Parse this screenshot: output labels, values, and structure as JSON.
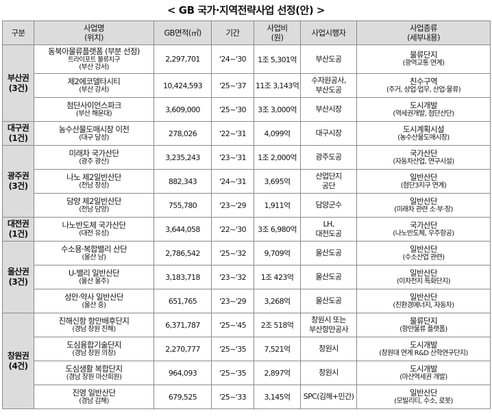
{
  "title": "< GB 국가·지역전략사업 선정(안) >",
  "header": {
    "region": "구분",
    "name": "사업명",
    "name_sub": "(위치)",
    "area": "GB면적(㎡)",
    "period": "기간",
    "cost": "사업비",
    "cost_sub": "(원)",
    "operator": "사업시행자",
    "type": "사업종류",
    "type_sub": "(세부내용)"
  },
  "regions": [
    {
      "name": "부산권",
      "count": "(3건)"
    },
    {
      "name": "대구권",
      "count": "(1건)"
    },
    {
      "name": "광주권",
      "count": "(3건)"
    },
    {
      "name": "대전권",
      "count": "(1건)"
    },
    {
      "name": "울산권",
      "count": "(3건)"
    },
    {
      "name": "창원권",
      "count": "(4건)"
    }
  ],
  "rows": [
    {
      "name": "동북아물류플랫폼 (부분 선정)",
      "sub": "트라이포트 물류지구",
      "loc": "(부산 강서)",
      "area": "2,297,701",
      "period": "'24~'30",
      "cost": "1조 5,301억",
      "operator": "부산도공",
      "operator2": "",
      "type": "물류단지",
      "detail": "(광역교통 연계)"
    },
    {
      "name": "제2에코델타시티",
      "loc": "(부산 강서)",
      "area": "10,424,593",
      "period": "'25~'37",
      "cost": "11조 3,143억",
      "operator": "수자원공사,",
      "operator2": "부산도공",
      "type": "친수구역",
      "detail": "(주거, 상업·업무, 산업·물류)"
    },
    {
      "name": "첨단사이언스파크",
      "loc": "(부산 해운대)",
      "area": "3,609,000",
      "period": "'25~'30",
      "cost": "3조 3,000억",
      "operator": "부산시장",
      "operator2": "",
      "type": "도시개발",
      "detail": "(역세권개발, 첨단산단)"
    },
    {
      "name": "농수산물도매시장 이전",
      "loc": "(대구 달성)",
      "area": "278,026",
      "period": "'22~'31",
      "cost": "4,099억",
      "operator": "대구시장",
      "operator2": "",
      "type": "도시계획시설",
      "detail": "(농수산물도매시장)"
    },
    {
      "name": "미래차 국가산단",
      "loc": "(광주 광산)",
      "area": "3,235,243",
      "period": "'23~'31",
      "cost": "1조 2,000억",
      "operator": "광주도공",
      "operator2": "",
      "type": "국가산단",
      "detail": "(자동차산업, 연구시설)"
    },
    {
      "name": "나노 제2일반산단",
      "loc": "(전남 장성)",
      "area": "882,343",
      "period": "'24~'31",
      "cost": "3,695억",
      "operator": "산업단지",
      "operator2": "공단",
      "type": "일반산단",
      "detail": "(첨단3지구 연계)"
    },
    {
      "name": "담양 제2일반산단",
      "loc": "(전남 담양)",
      "area": "755,780",
      "period": "'23~'29",
      "cost": "1,911억",
      "operator": "담양군수",
      "operator2": "",
      "type": "일반산단",
      "detail": "(미래차 관련 소·부·장)"
    },
    {
      "name": "나노반도체 국가산단",
      "loc": "(대전 유성)",
      "area": "3,644,058",
      "period": "'22~'30",
      "cost": "3조 6,980억",
      "operator": "LH,",
      "operator2": "대전도공",
      "type": "국가산단",
      "detail": "(나노반도체, 우주항공)"
    },
    {
      "name": "수소용·복합밸리 산단",
      "loc": "(울산 남)",
      "area": "2,786,542",
      "period": "'25~'32",
      "cost": "9,709억",
      "operator": "울산도공",
      "operator2": "",
      "type": "일반산단",
      "detail": "(수소산업 관련)"
    },
    {
      "name": "U-밸리 일반산단",
      "loc": "(울산 울주)",
      "area": "3,183,718",
      "period": "'23~'32",
      "cost": "1조 423억",
      "operator": "울산도공",
      "operator2": "",
      "type": "일반산단",
      "detail": "(이차전지 특화단지)"
    },
    {
      "name": "성안·약사 일반산단",
      "loc": "(울산 중)",
      "area": "651,765",
      "period": "'23~'29",
      "cost": "3,268억",
      "operator": "울산도공",
      "operator2": "",
      "type": "일반산단",
      "detail": "(친환경에너지, 자동차)"
    },
    {
      "name": "진해신항 항만배후단지",
      "loc": "(경남 창원 진해)",
      "area": "6,371,787",
      "period": "'25~'45",
      "cost": "2조 518억",
      "operator": "창원시 또는",
      "operator2": "부산항만공사",
      "type": "물류단지",
      "detail": "(항만물류 플랫폼)"
    },
    {
      "name": "도심융합기술단지",
      "loc": "(경남 창원 의창)",
      "area": "2,270,777",
      "period": "'25~'35",
      "cost": "7,521억",
      "operator": "창원시",
      "operator2": "",
      "type": "도시개발",
      "detail": "(창원대 연계 R&D 산학연구단지)"
    },
    {
      "name": "도심생활 복합단지",
      "loc": "(경남 창원 마산회원)",
      "area": "964,093",
      "period": "'25~'35",
      "cost": "2,897억",
      "operator": "창원시",
      "operator2": "",
      "type": "도시개발",
      "detail": "(마산역세권 개발)"
    },
    {
      "name": "진영 일반산단",
      "loc": "(경남 김해)",
      "area": "679,525",
      "period": "'25~'33",
      "cost": "3,145억",
      "operator": "SPC(김해+민간)",
      "operator2": "",
      "type": "일반산단",
      "detail": "(모빌리티, 수소, 로봇)"
    }
  ]
}
